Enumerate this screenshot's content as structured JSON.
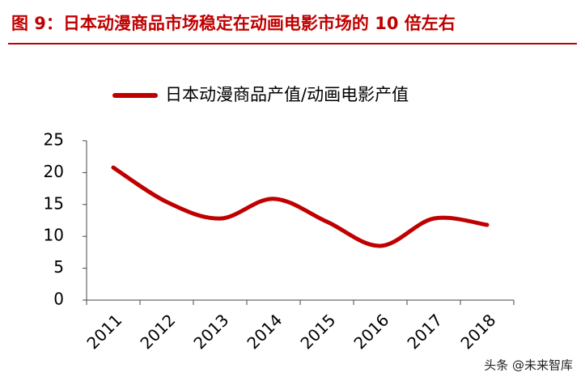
{
  "chart_data": {
    "type": "line",
    "title": "图 9：日本动漫商品市场稳定在动画电影市场的 10 倍左右",
    "categories": [
      "2011",
      "2012",
      "2013",
      "2014",
      "2015",
      "2016",
      "2017",
      "2018"
    ],
    "series": [
      {
        "name": "日本动漫商品产值/动画电影产值",
        "color": "#c00000",
        "values": [
          20.8,
          15.4,
          12.8,
          15.9,
          12.3,
          8.5,
          12.8,
          11.8
        ]
      }
    ],
    "ylim": [
      0,
      25
    ],
    "yticks": [
      0,
      5,
      10,
      15,
      20,
      25
    ],
    "smooth": true,
    "legend": "top",
    "watermark": "头条 @未来智库"
  }
}
